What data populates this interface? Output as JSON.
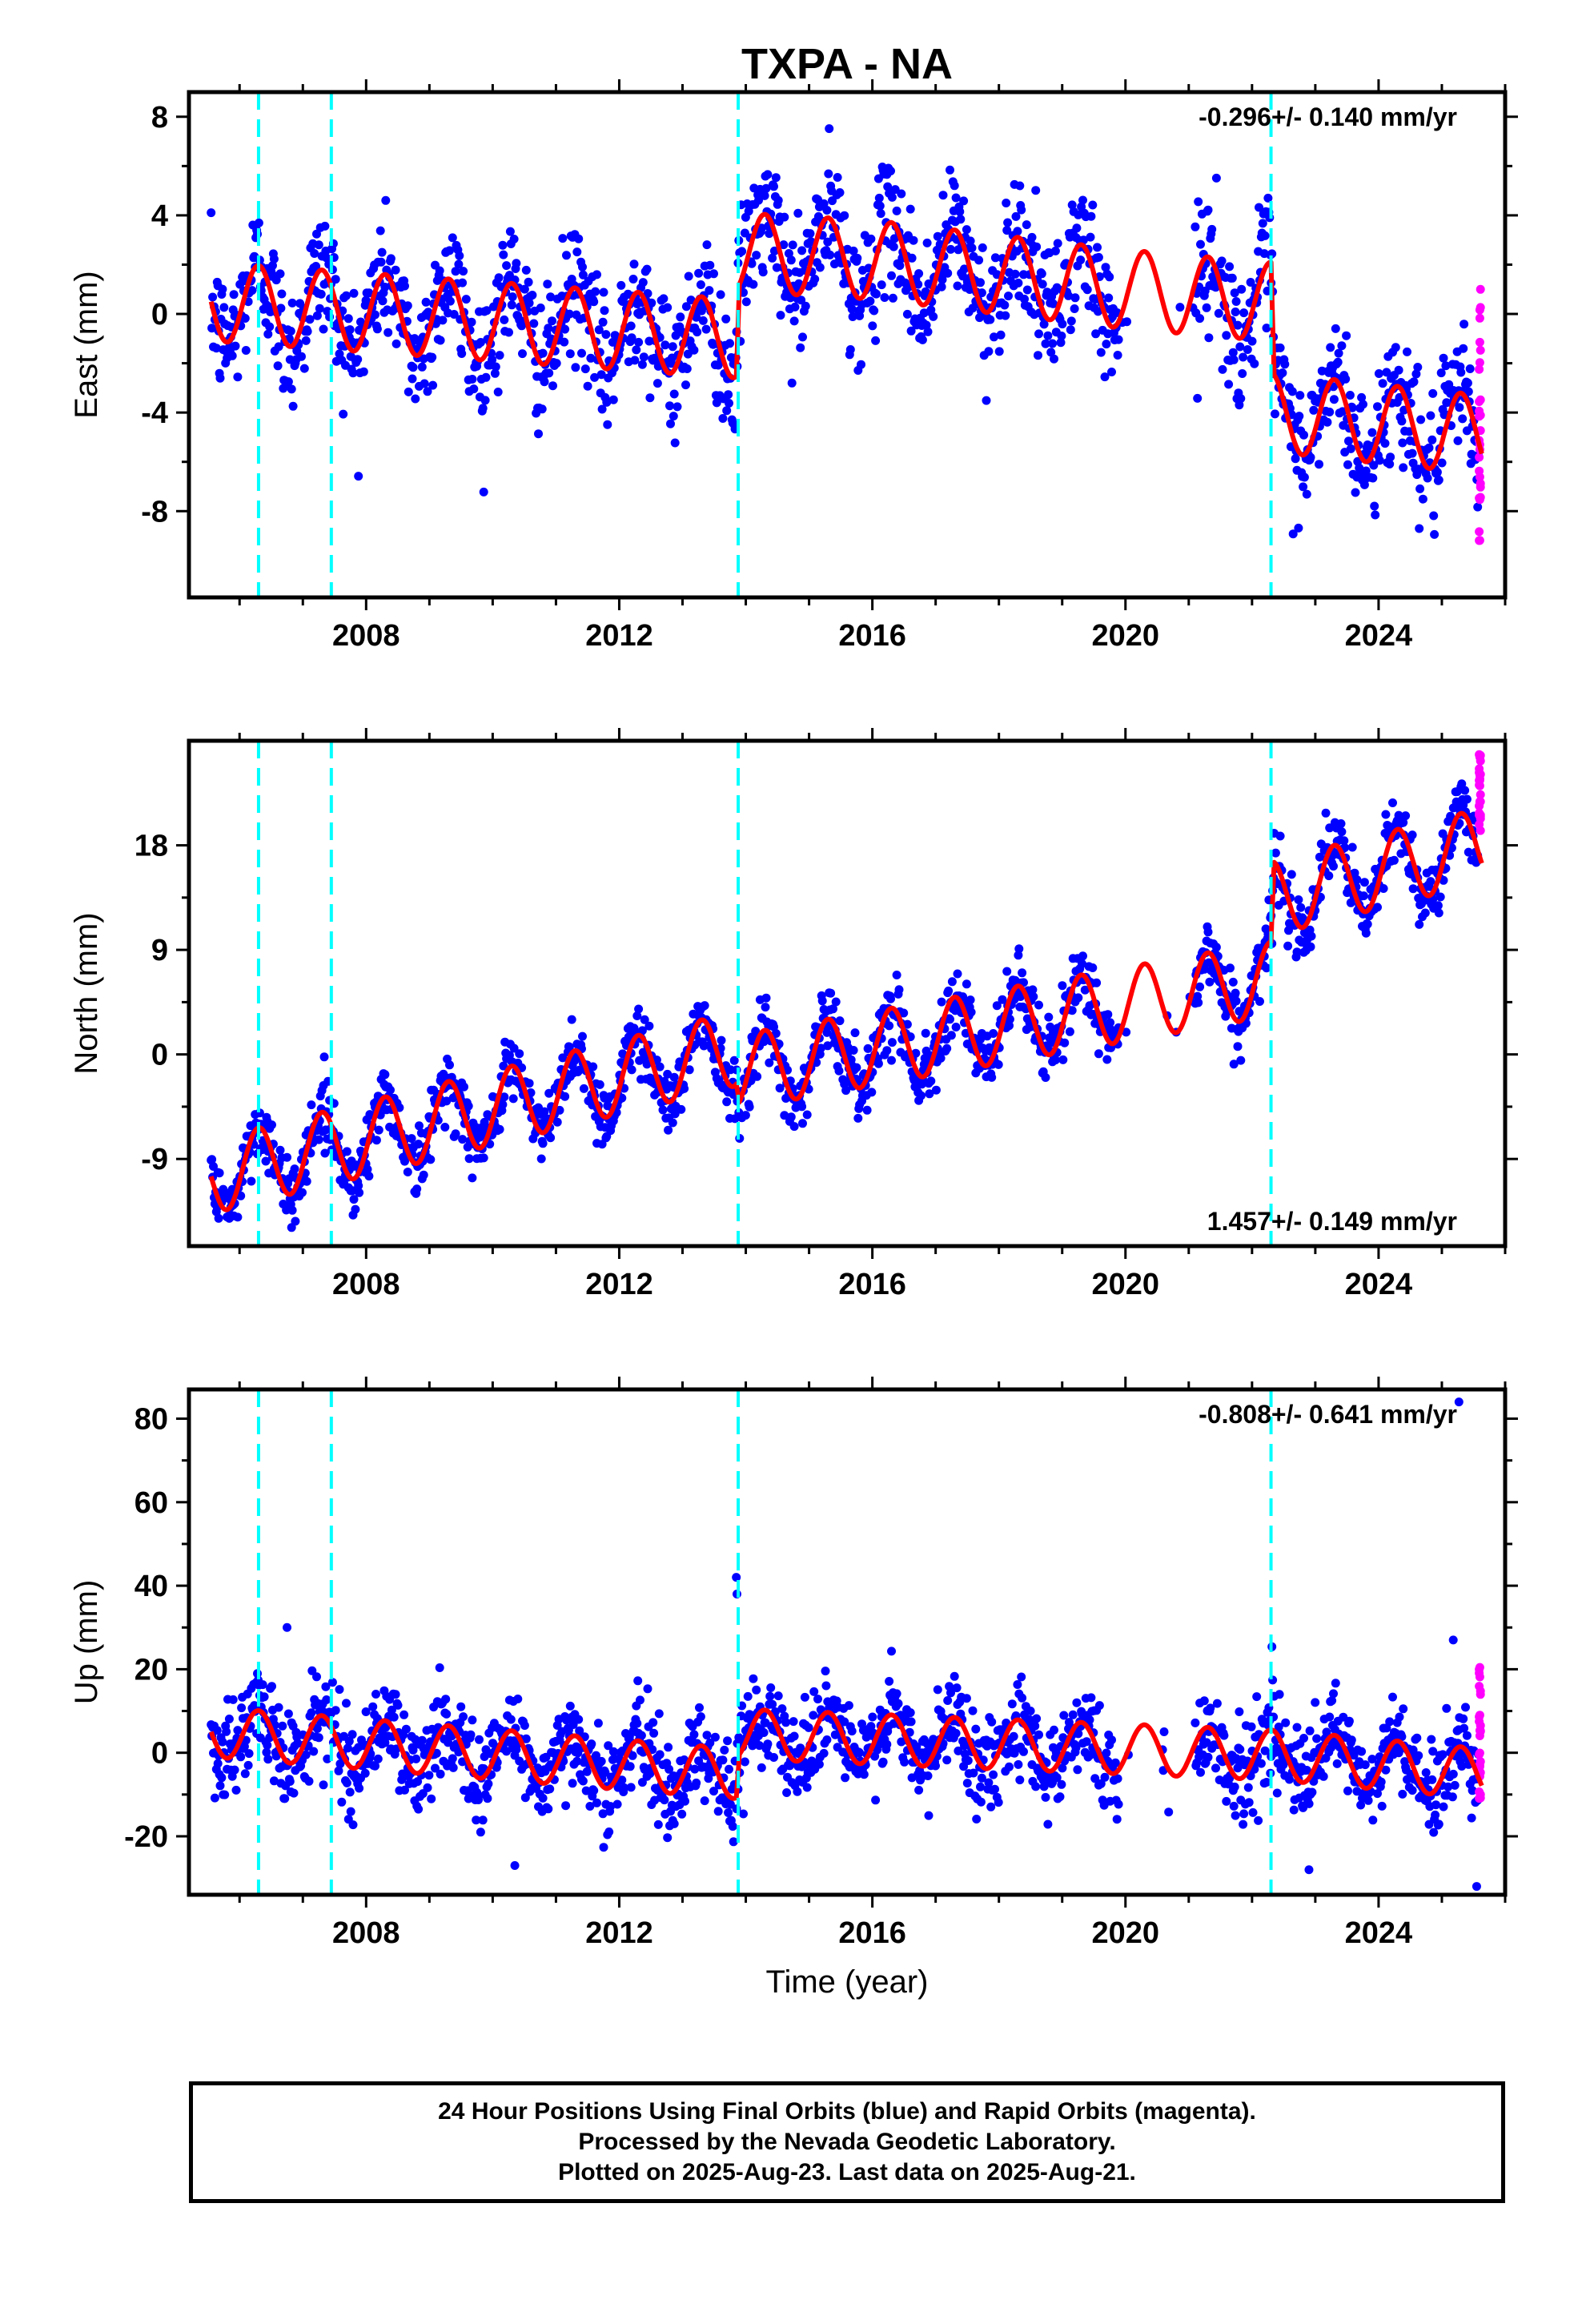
{
  "title": "TXPA - NA",
  "xlabel": "Time (year)",
  "colors": {
    "final": "#0000ff",
    "rapid": "#ff00ff",
    "model": "#ff0000",
    "offsets": "#00ffff"
  },
  "footer": {
    "line1": "24 Hour Positions Using Final Orbits (blue) and Rapid Orbits (magenta).",
    "line2": "Processed by the Nevada Geodetic Laboratory.",
    "line3": "Plotted on 2025-Aug-23. Last data on 2025-Aug-21."
  },
  "chart_data": [
    {
      "type": "scatter",
      "component": "east",
      "ylabel": "East (mm)",
      "rate": "-0.296+/- 0.140 mm/yr",
      "rate_position": "top-right",
      "xlim": [
        2005.2,
        2026.0
      ],
      "ylim": [
        -11.5,
        9
      ],
      "x_ticks": [
        2008,
        2012,
        2016,
        2020,
        2024
      ],
      "y_ticks": [
        -8,
        -4,
        0,
        4,
        8
      ],
      "offset_epochs": [
        2006.3,
        2007.45,
        2013.88,
        2022.3
      ],
      "data_span": [
        2005.55,
        2025.63
      ],
      "model_trend": [
        {
          "x": 2005.55,
          "y": 0.5
        },
        {
          "x": 2013.85,
          "y": -1.0
        },
        {
          "x": 2013.9,
          "y": 2.5
        },
        {
          "x": 2016.0,
          "y": 2.2
        },
        {
          "x": 2020.0,
          "y": 1.0
        },
        {
          "x": 2022.3,
          "y": 0.5
        },
        {
          "x": 2022.35,
          "y": -4.0
        },
        {
          "x": 2025.63,
          "y": -4.9
        }
      ],
      "seasonal_amplitude": 1.6,
      "scatter_sd": 1.3,
      "rapid_range": [
        -9.2,
        1.4
      ],
      "data_gap": [
        2019.9,
        2021.1
      ]
    },
    {
      "type": "scatter",
      "component": "north",
      "ylabel": "North (mm)",
      "rate": "1.457+/- 0.149 mm/yr",
      "rate_position": "bottom-right",
      "xlim": [
        2005.2,
        2026.0
      ],
      "ylim": [
        -16.5,
        27
      ],
      "x_ticks": [
        2008,
        2012,
        2016,
        2020,
        2024
      ],
      "y_ticks": [
        -9,
        0,
        9,
        18
      ],
      "offset_epochs": [
        2006.3,
        2007.45,
        2013.88,
        2022.3
      ],
      "data_span": [
        2005.55,
        2025.63
      ],
      "model_trend": [
        {
          "x": 2005.55,
          "y": -10.5
        },
        {
          "x": 2013.85,
          "y": 0.5
        },
        {
          "x": 2013.9,
          "y": -1.5
        },
        {
          "x": 2022.3,
          "y": 6.5
        },
        {
          "x": 2022.35,
          "y": 13.5
        },
        {
          "x": 2025.63,
          "y": 18.0
        }
      ],
      "seasonal_amplitude": 3.2,
      "scatter_sd": 1.4,
      "rapid_range": [
        19.0,
        26.0
      ],
      "data_gap": [
        2019.9,
        2021.1
      ]
    },
    {
      "type": "scatter",
      "component": "up",
      "ylabel": "Up (mm)",
      "rate": "-0.808+/- 0.641 mm/yr",
      "rate_position": "top-right",
      "xlim": [
        2005.2,
        2026.0
      ],
      "ylim": [
        -34,
        87
      ],
      "x_ticks": [
        2008,
        2012,
        2016,
        2020,
        2024
      ],
      "y_ticks": [
        -20,
        0,
        20,
        40,
        60,
        80
      ],
      "offset_epochs": [
        2006.3,
        2007.45,
        2013.88,
        2022.3
      ],
      "data_span": [
        2005.55,
        2025.63
      ],
      "model_trend": [
        {
          "x": 2005.55,
          "y": 5.0
        },
        {
          "x": 2013.85,
          "y": -5.0
        },
        {
          "x": 2013.9,
          "y": 4.5
        },
        {
          "x": 2022.3,
          "y": -0.5
        },
        {
          "x": 2022.35,
          "y": -0.5
        },
        {
          "x": 2025.63,
          "y": -5.0
        }
      ],
      "seasonal_amplitude": 6.0,
      "scatter_sd": 5.5,
      "rapid_range": [
        -12.0,
        21.0
      ],
      "data_gap": [
        2019.9,
        2021.1
      ],
      "outliers": [
        {
          "x": 2013.85,
          "y": 42
        },
        {
          "x": 2013.86,
          "y": 38
        },
        {
          "x": 2025.27,
          "y": 84
        },
        {
          "x": 2025.18,
          "y": 27
        },
        {
          "x": 2006.75,
          "y": 30
        },
        {
          "x": 2025.55,
          "y": -32
        },
        {
          "x": 2022.9,
          "y": -28
        },
        {
          "x": 2010.35,
          "y": -27
        }
      ]
    }
  ]
}
